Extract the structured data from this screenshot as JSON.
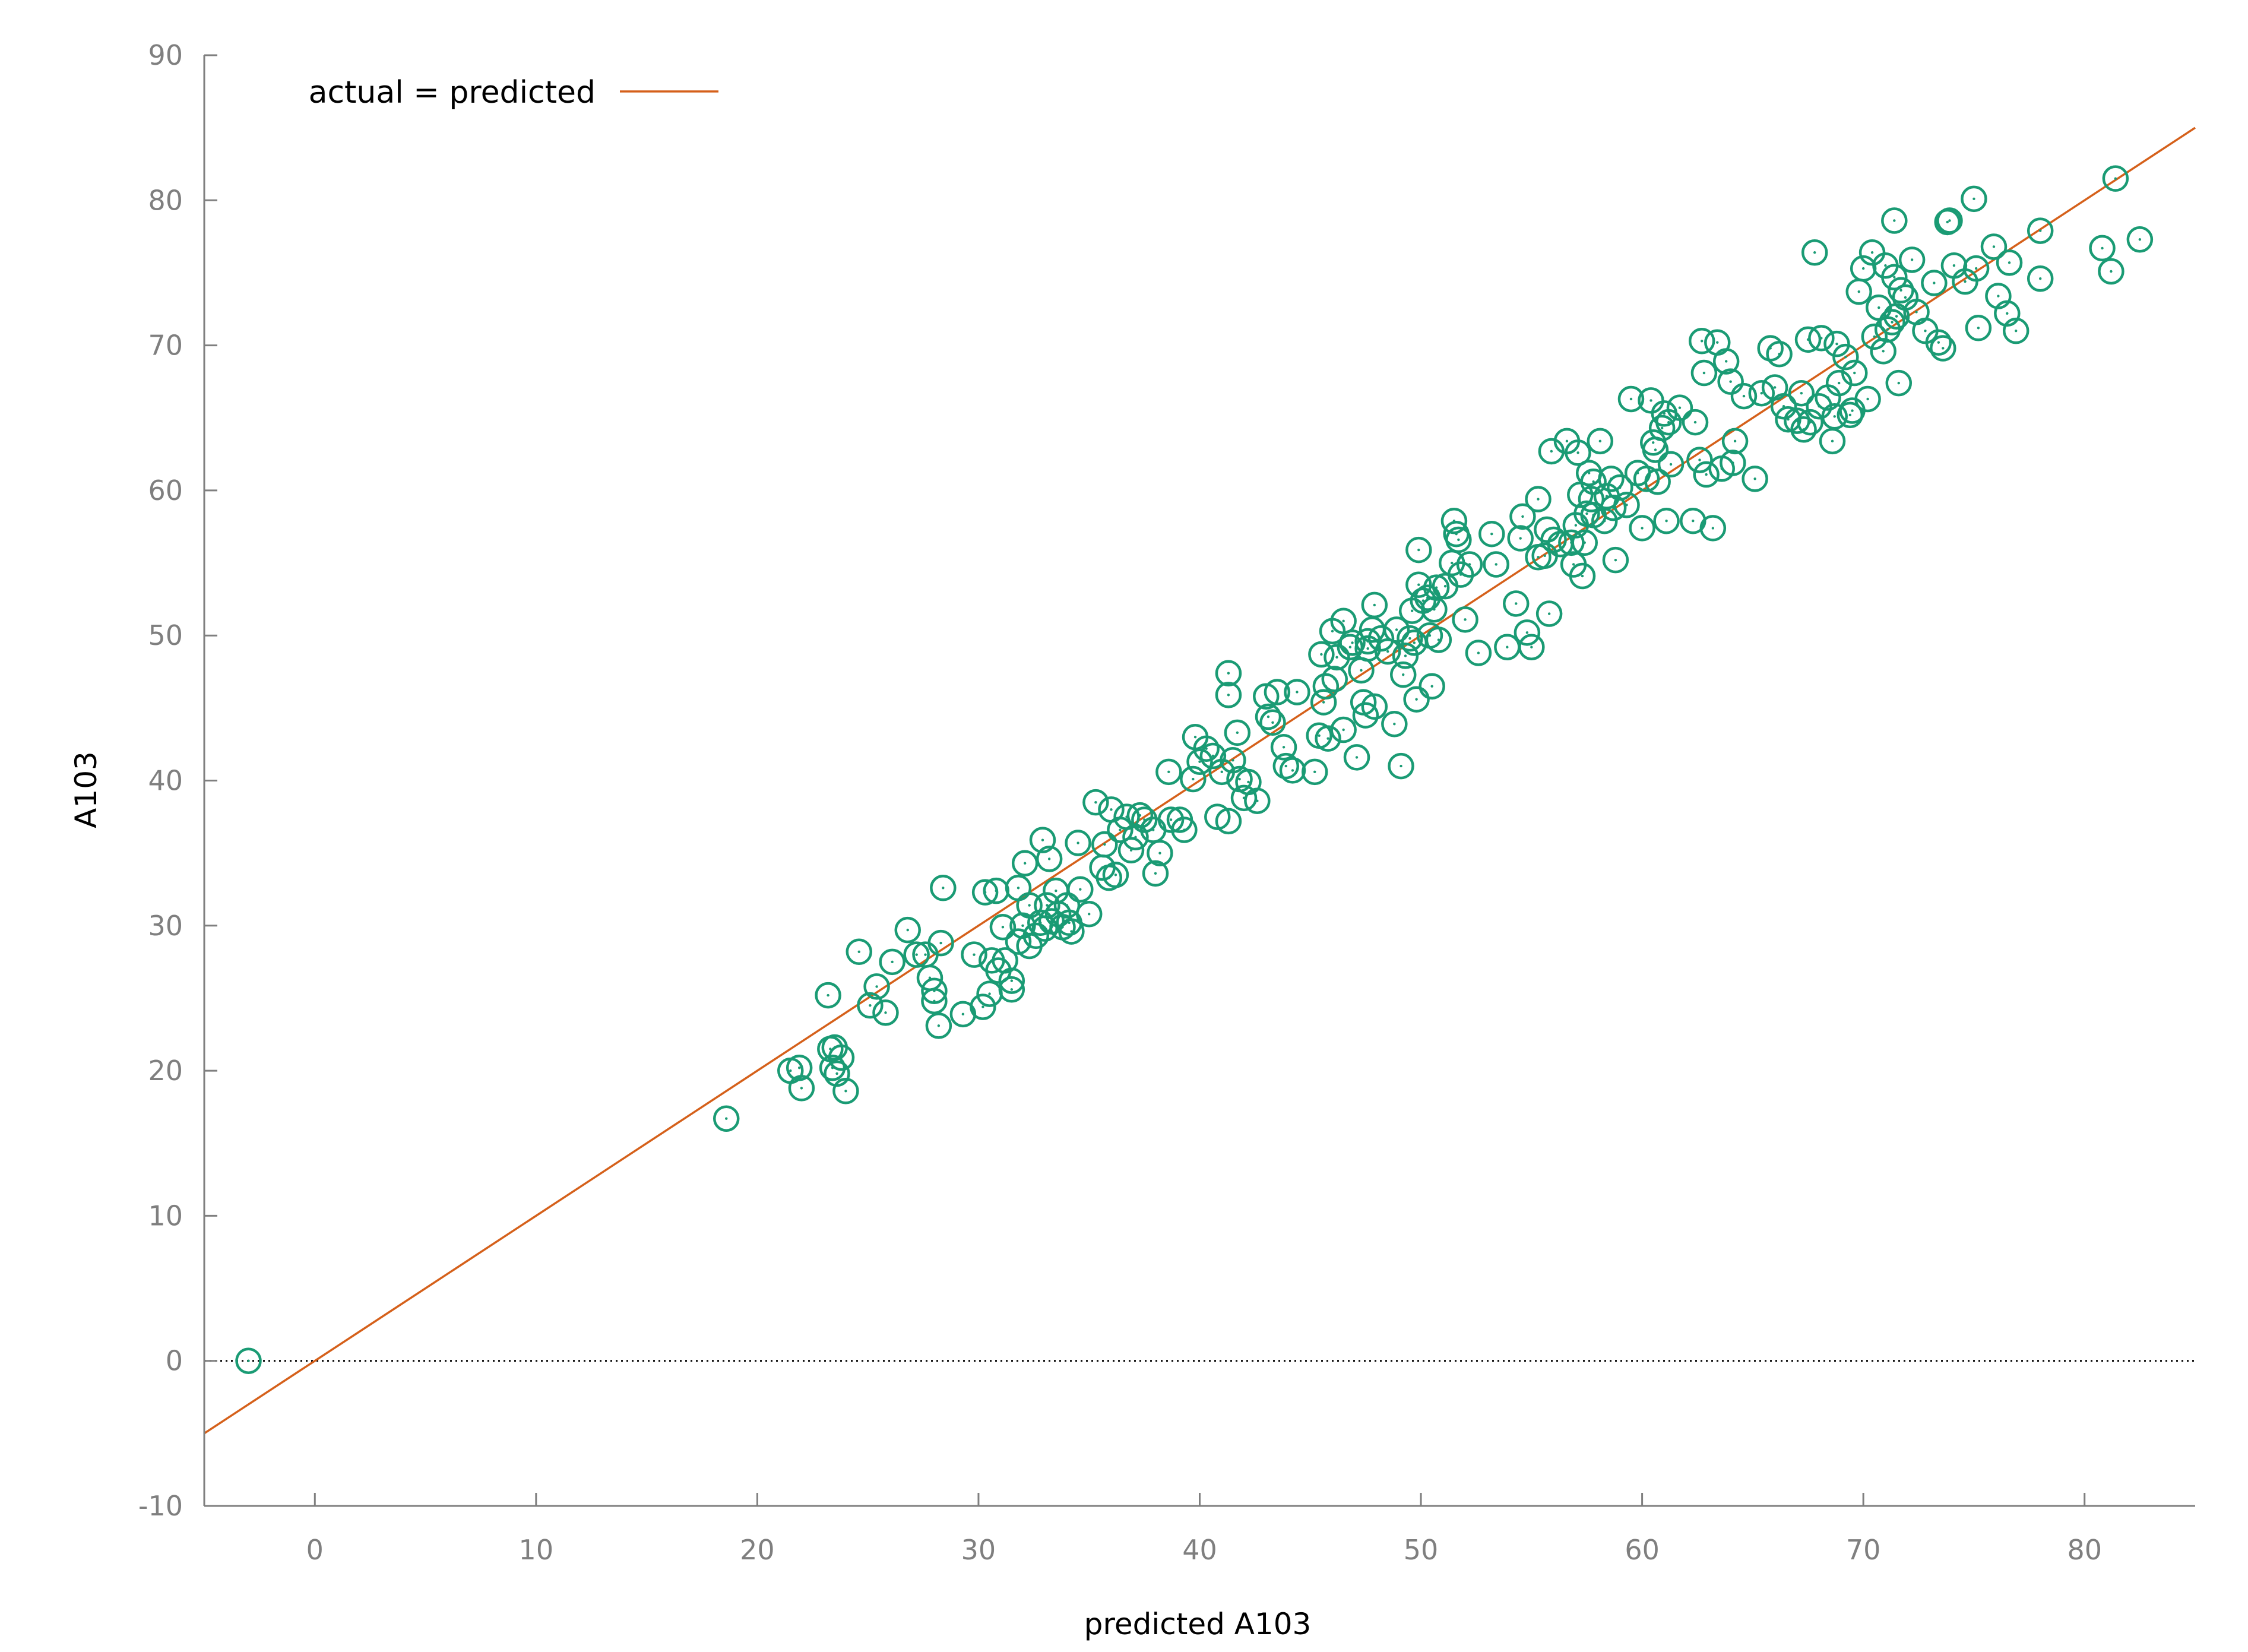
{
  "chart_data": {
    "type": "scatter",
    "title": "",
    "xlabel": "predicted A103",
    "ylabel": "A103",
    "xlim": [
      -5,
      85
    ],
    "ylim": [
      -10,
      90
    ],
    "xticks": [
      "0",
      "10",
      "20",
      "30",
      "40",
      "50",
      "60",
      "70",
      "80"
    ],
    "yticks": [
      "-10",
      "0",
      "10",
      "20",
      "30",
      "40",
      "50",
      "60",
      "70",
      "80",
      "90"
    ],
    "grid": false,
    "legend_position": "top-left",
    "colors": {
      "points": "#1a9b74",
      "fit_line": "#d5601a",
      "axis": "#7f7f7f",
      "zero_line": "#000000"
    },
    "fit_line": {
      "name": "actual = predicted",
      "x": [
        -5,
        85
      ],
      "y": [
        -5,
        85
      ]
    },
    "zero_line": {
      "y": 0,
      "style": "dotted"
    },
    "points": [
      [
        -3,
        0
      ],
      [
        18.6,
        16.7
      ],
      [
        21.5,
        20
      ],
      [
        21.9,
        20.2
      ],
      [
        22,
        18.8
      ],
      [
        23.2,
        25.2
      ],
      [
        23.3,
        21.5
      ],
      [
        23.5,
        21.6
      ],
      [
        23.4,
        20.2
      ],
      [
        23.6,
        19.8
      ],
      [
        23.8,
        20.9
      ],
      [
        24,
        18.6
      ],
      [
        24.6,
        28.2
      ],
      [
        25.1,
        24.5
      ],
      [
        25.4,
        25.8
      ],
      [
        25.8,
        24
      ],
      [
        26.1,
        27.5
      ],
      [
        26.8,
        29.7
      ],
      [
        27.2,
        28
      ],
      [
        27.6,
        28
      ],
      [
        27.8,
        26.4
      ],
      [
        28,
        25.5
      ],
      [
        28,
        24.8
      ],
      [
        28.2,
        23.1
      ],
      [
        28.3,
        28.8
      ],
      [
        28.4,
        32.6
      ],
      [
        29.3,
        23.9
      ],
      [
        29.8,
        28
      ],
      [
        30.2,
        24.4
      ],
      [
        30.3,
        32.3
      ],
      [
        30.5,
        25.3
      ],
      [
        30.6,
        27.6
      ],
      [
        30.8,
        32.4
      ],
      [
        30.9,
        26.9
      ],
      [
        31.1,
        29.9
      ],
      [
        31.2,
        27.6
      ],
      [
        31.5,
        25.6
      ],
      [
        31.5,
        26.2
      ],
      [
        31.8,
        28.9
      ],
      [
        31.8,
        32.6
      ],
      [
        32,
        30
      ],
      [
        32.1,
        34.3
      ],
      [
        32.3,
        28.6
      ],
      [
        32.3,
        31.4
      ],
      [
        32.6,
        29.3
      ],
      [
        32.8,
        30.2
      ],
      [
        32.9,
        35.9
      ],
      [
        33,
        29.8
      ],
      [
        33.1,
        31.4
      ],
      [
        33.2,
        34.6
      ],
      [
        33.3,
        30.3
      ],
      [
        33.5,
        32.4
      ],
      [
        33.6,
        30.8
      ],
      [
        33.8,
        29.9
      ],
      [
        34,
        31.4
      ],
      [
        34.1,
        30.2
      ],
      [
        34.2,
        29.6
      ],
      [
        34.5,
        35.7
      ],
      [
        34.6,
        32.5
      ],
      [
        35,
        30.8
      ],
      [
        35.3,
        38.5
      ],
      [
        35.6,
        34
      ],
      [
        35.7,
        35.6
      ],
      [
        35.9,
        33.3
      ],
      [
        36,
        38
      ],
      [
        36.2,
        33.5
      ],
      [
        36.4,
        36.6
      ],
      [
        36.7,
        37.5
      ],
      [
        36.9,
        35.2
      ],
      [
        37.1,
        36.1
      ],
      [
        37.3,
        37.6
      ],
      [
        37.5,
        37.3
      ],
      [
        37.9,
        36.6
      ],
      [
        38,
        33.6
      ],
      [
        38.2,
        35
      ],
      [
        38.6,
        40.6
      ],
      [
        38.7,
        37.3
      ],
      [
        39.1,
        37.3
      ],
      [
        39.3,
        36.6
      ],
      [
        39.7,
        40.1
      ],
      [
        39.8,
        43
      ],
      [
        40,
        41.3
      ],
      [
        40.3,
        42.2
      ],
      [
        40.6,
        41.7
      ],
      [
        40.8,
        37.5
      ],
      [
        41,
        40.6
      ],
      [
        41.3,
        37.2
      ],
      [
        41.3,
        47.4
      ],
      [
        41.3,
        45.9
      ],
      [
        41.5,
        41.4
      ],
      [
        41.7,
        43.3
      ],
      [
        41.8,
        40.1
      ],
      [
        42,
        38.8
      ],
      [
        42.2,
        39.9
      ],
      [
        42.6,
        38.6
      ],
      [
        43,
        45.8
      ],
      [
        43.1,
        44.4
      ],
      [
        43.3,
        44
      ],
      [
        43.5,
        46.1
      ],
      [
        43.8,
        42.3
      ],
      [
        43.9,
        41
      ],
      [
        44.2,
        40.7
      ],
      [
        44.4,
        46.1
      ],
      [
        45.2,
        40.6
      ],
      [
        45.4,
        43.1
      ],
      [
        45.5,
        48.7
      ],
      [
        45.6,
        45.4
      ],
      [
        45.7,
        46.5
      ],
      [
        45.8,
        42.9
      ],
      [
        46,
        50.3
      ],
      [
        46.1,
        47
      ],
      [
        46.2,
        48.5
      ],
      [
        46.5,
        51
      ],
      [
        46.5,
        43.5
      ],
      [
        46.8,
        49.2
      ],
      [
        46.9,
        49.5
      ],
      [
        47.1,
        41.6
      ],
      [
        47.3,
        47.6
      ],
      [
        47.4,
        45.4
      ],
      [
        47.5,
        44.5
      ],
      [
        47.6,
        49.1
      ],
      [
        47.6,
        49.6
      ],
      [
        47.8,
        50.4
      ],
      [
        47.9,
        45.1
      ],
      [
        47.9,
        52.1
      ],
      [
        48.2,
        49.8
      ],
      [
        48.5,
        48.9
      ],
      [
        48.8,
        43.9
      ],
      [
        48.9,
        50.4
      ],
      [
        49.1,
        41
      ],
      [
        49.2,
        47.3
      ],
      [
        49.3,
        48.6
      ],
      [
        49.5,
        49.8
      ],
      [
        49.6,
        51.7
      ],
      [
        49.7,
        49.5
      ],
      [
        49.8,
        45.6
      ],
      [
        49.9,
        55.9
      ],
      [
        49.9,
        53.5
      ],
      [
        50.1,
        52.4
      ],
      [
        50.3,
        52.6
      ],
      [
        50.4,
        50
      ],
      [
        50.5,
        46.5
      ],
      [
        50.6,
        51.8
      ],
      [
        50.7,
        53.3
      ],
      [
        50.8,
        49.7
      ],
      [
        51.1,
        53.4
      ],
      [
        51.4,
        55
      ],
      [
        51.5,
        57.9
      ],
      [
        51.6,
        57
      ],
      [
        51.7,
        56.6
      ],
      [
        51.8,
        54.2
      ],
      [
        52,
        51.1
      ],
      [
        52.2,
        54.9
      ],
      [
        52.6,
        48.8
      ],
      [
        53.2,
        57
      ],
      [
        53.4,
        54.9
      ],
      [
        53.9,
        49.2
      ],
      [
        54.3,
        52.2
      ],
      [
        54.5,
        56.7
      ],
      [
        54.6,
        58.2
      ],
      [
        54.8,
        50.2
      ],
      [
        55,
        49.2
      ],
      [
        55.3,
        59.4
      ],
      [
        55.3,
        55.4
      ],
      [
        55.6,
        55.5
      ],
      [
        55.7,
        57.3
      ],
      [
        55.8,
        51.5
      ],
      [
        55.9,
        62.7
      ],
      [
        56,
        56.6
      ],
      [
        56.3,
        56.3
      ],
      [
        56.6,
        63.4
      ],
      [
        56.8,
        56.4
      ],
      [
        56.9,
        54.9
      ],
      [
        57,
        57.6
      ],
      [
        57.1,
        62.6
      ],
      [
        57.2,
        59.7
      ],
      [
        57.3,
        54.1
      ],
      [
        57.4,
        56.4
      ],
      [
        57.5,
        58.4
      ],
      [
        57.6,
        61.2
      ],
      [
        57.7,
        59.4
      ],
      [
        57.8,
        58.3
      ],
      [
        57.8,
        60.6
      ],
      [
        58.1,
        63.4
      ],
      [
        58.3,
        57.9
      ],
      [
        58.4,
        59.6
      ],
      [
        58.6,
        60.8
      ],
      [
        58.7,
        58.8
      ],
      [
        58.8,
        55.2
      ],
      [
        59,
        60.2
      ],
      [
        59.3,
        59
      ],
      [
        59.5,
        66.3
      ],
      [
        59.8,
        61.2
      ],
      [
        60,
        57.4
      ],
      [
        60.2,
        60.8
      ],
      [
        60.4,
        66.2
      ],
      [
        60.5,
        63.3
      ],
      [
        60.6,
        62.8
      ],
      [
        60.7,
        60.6
      ],
      [
        60.9,
        64.3
      ],
      [
        61,
        65.3
      ],
      [
        61.1,
        57.9
      ],
      [
        61.2,
        64.7
      ],
      [
        61.3,
        61.8
      ],
      [
        61.7,
        65.7
      ],
      [
        62.3,
        57.9
      ],
      [
        62.4,
        64.7
      ],
      [
        62.6,
        62.1
      ],
      [
        62.7,
        70.3
      ],
      [
        62.8,
        68.1
      ],
      [
        62.9,
        61.1
      ],
      [
        63.2,
        57.4
      ],
      [
        63.4,
        70.2
      ],
      [
        63.6,
        61.5
      ],
      [
        63.8,
        68.9
      ],
      [
        64,
        67.5
      ],
      [
        64.1,
        61.9
      ],
      [
        64.2,
        63.4
      ],
      [
        64.6,
        66.5
      ],
      [
        65.1,
        60.8
      ],
      [
        65.4,
        66.7
      ],
      [
        65.8,
        69.8
      ],
      [
        66,
        67.1
      ],
      [
        66.2,
        69.4
      ],
      [
        66.4,
        65.8
      ],
      [
        66.6,
        64.9
      ],
      [
        67,
        64.8
      ],
      [
        67.2,
        66.7
      ],
      [
        67.3,
        64.2
      ],
      [
        67.5,
        70.4
      ],
      [
        67.6,
        64.7
      ],
      [
        67.8,
        76.4
      ],
      [
        68,
        65.8
      ],
      [
        68.1,
        70.5
      ],
      [
        68.4,
        66.4
      ],
      [
        68.6,
        63.4
      ],
      [
        68.7,
        65.1
      ],
      [
        68.8,
        70.1
      ],
      [
        68.9,
        67.4
      ],
      [
        69.2,
        69.2
      ],
      [
        69.4,
        65.2
      ],
      [
        69.5,
        65.5
      ],
      [
        69.6,
        68.1
      ],
      [
        69.8,
        73.7
      ],
      [
        70,
        75.3
      ],
      [
        70.2,
        66.3
      ],
      [
        70.4,
        76.4
      ],
      [
        70.5,
        70.6
      ],
      [
        70.7,
        72.6
      ],
      [
        70.9,
        69.6
      ],
      [
        71,
        75.5
      ],
      [
        71.1,
        71.1
      ],
      [
        71.3,
        71.6
      ],
      [
        71.4,
        78.6
      ],
      [
        71.4,
        74.7
      ],
      [
        71.5,
        72
      ],
      [
        71.6,
        67.4
      ],
      [
        71.7,
        73.8
      ],
      [
        71.9,
        73.3
      ],
      [
        72.2,
        75.9
      ],
      [
        72.4,
        72.3
      ],
      [
        72.8,
        71
      ],
      [
        73.2,
        74.3
      ],
      [
        73.4,
        70.2
      ],
      [
        73.6,
        69.8
      ],
      [
        73.8,
        78.5
      ],
      [
        73.9,
        78.6
      ],
      [
        74.1,
        75.5
      ],
      [
        74.6,
        74.4
      ],
      [
        75,
        80.1
      ],
      [
        75.1,
        75.3
      ],
      [
        75.2,
        71.2
      ],
      [
        75.9,
        76.8
      ],
      [
        76.1,
        73.4
      ],
      [
        76.5,
        72.2
      ],
      [
        76.6,
        75.7
      ],
      [
        76.9,
        71
      ],
      [
        78,
        77.9
      ],
      [
        78,
        74.6
      ],
      [
        80.8,
        76.7
      ],
      [
        81.2,
        75.1
      ],
      [
        81.4,
        81.5
      ],
      [
        82.5,
        77.3
      ]
    ]
  }
}
